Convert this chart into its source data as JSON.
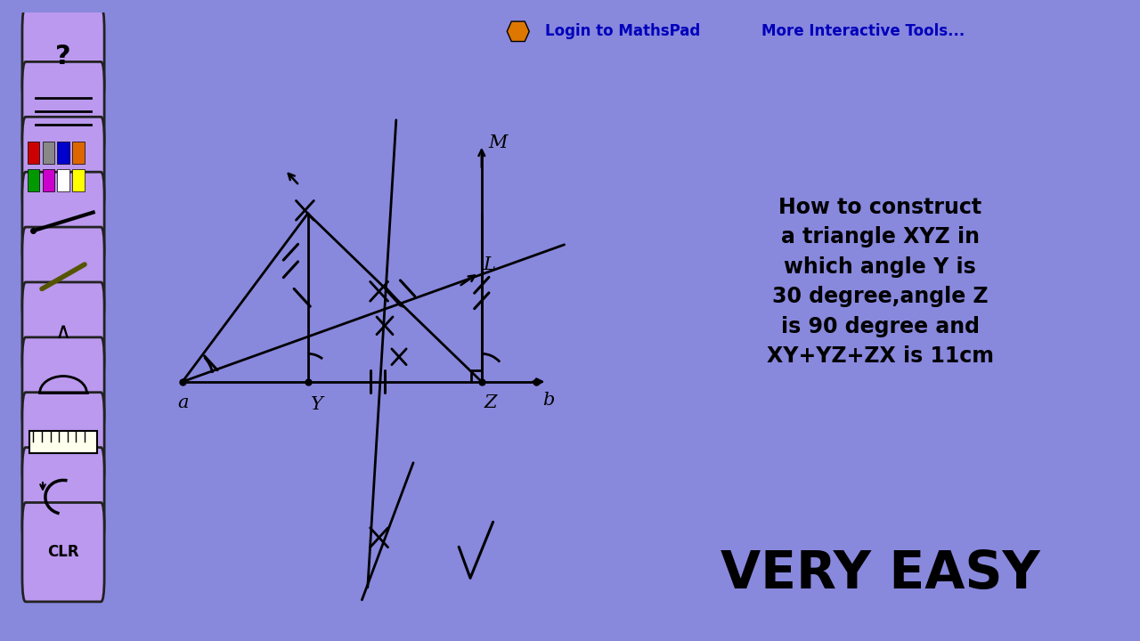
{
  "fig_w": 12.8,
  "fig_h": 7.2,
  "bg_outer": "#8888dd",
  "bg_canvas": "#fffff0",
  "drawing_bg": "#ffffd0",
  "toolbar_btn_color": "#bb99ee",
  "green_box_color": "#aaee00",
  "cyan_box_color": "#00ddee",
  "green_box_text": "How to construct\na triangle XYZ in\nwhich angle Y is\n30 degree,angle Z\nis 90 degree and\nXY+YZ+ZX is 11cm",
  "cyan_box_text": "VERY EASY",
  "header_btn1_text": "Login to MathsPad",
  "header_btn2_text": "More Interactive Tools...",
  "btn_text_color": "#0000bb",
  "icon_color": "#dd7700"
}
